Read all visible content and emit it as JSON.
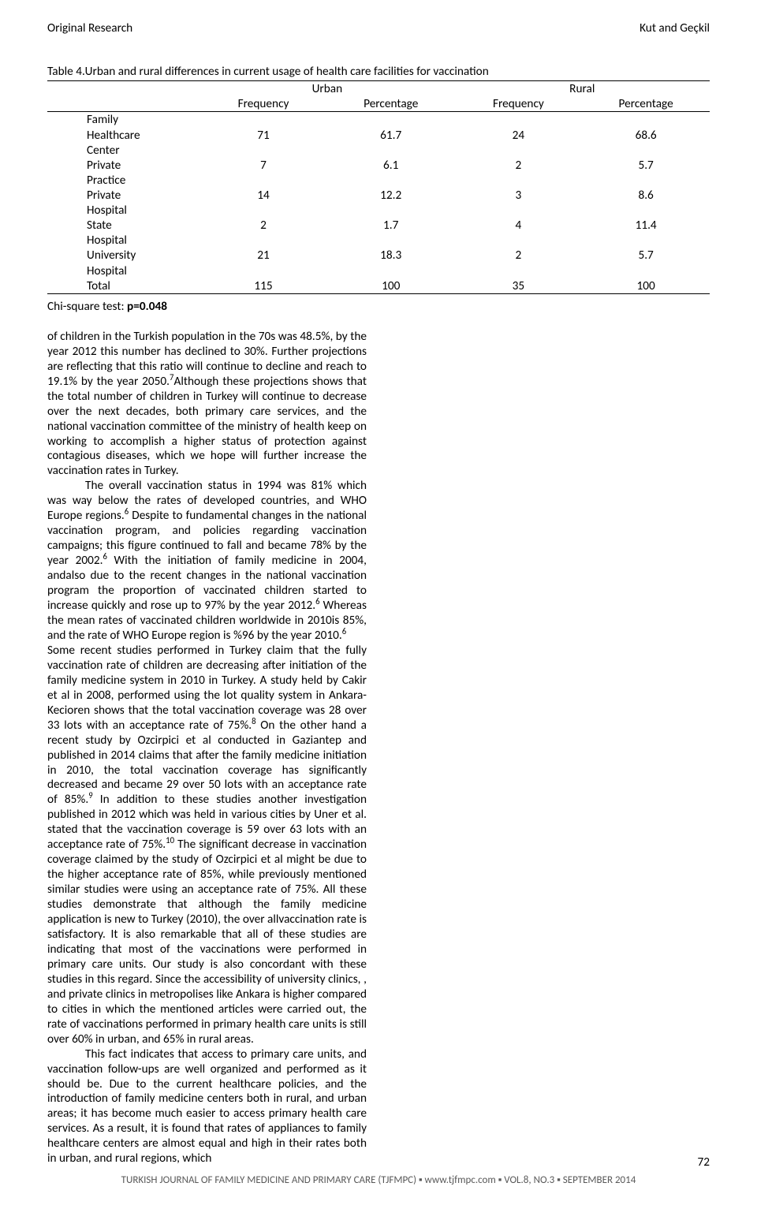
{
  "header": {
    "left": "Original Research",
    "right": "Kut and Geçkil"
  },
  "table": {
    "caption": "Table 4.Urban and rural differences in current usage of health care facilities for vaccination",
    "group_labels": [
      "Urban",
      "Rural"
    ],
    "col_labels": [
      "Frequency",
      "Percentage",
      "Frequency",
      "Percentage"
    ],
    "rows": [
      {
        "label_line1": "Family",
        "label_line2": "Healthcare",
        "label_line3": "Center",
        "vals": [
          "71",
          "61.7",
          "24",
          "68.6"
        ]
      },
      {
        "label_line1": "Private",
        "label_line2": "Practice",
        "vals": [
          "7",
          "6.1",
          "2",
          "5.7"
        ]
      },
      {
        "label_line1": "Private",
        "label_line2": "Hospital",
        "vals": [
          "14",
          "12.2",
          "3",
          "8.6"
        ]
      },
      {
        "label_line1": "State",
        "label_line2": "Hospital",
        "vals": [
          "2",
          "1.7",
          "4",
          "11.4"
        ]
      },
      {
        "label_line1": "University",
        "label_line2": "Hospital",
        "vals": [
          "21",
          "18.3",
          "2",
          "5.7"
        ]
      },
      {
        "label_line1": "Total",
        "vals": [
          "115",
          "100",
          "35",
          "100"
        ],
        "is_total": true
      }
    ],
    "chi_label": "Chi-square test: ",
    "chi_value": "p=0.048"
  },
  "body": {
    "p1": "of children in the Turkish population in the 70s was 48.5%, by the year 2012 this number has declined to 30%. Further projections are reflecting that this ratio will continue to decline and reach to 19.1% by the year 2050.",
    "p1_cont": "Although these projections shows that the total number of children in Turkey will continue to decrease over the next decades, both primary care services, and the national vaccination committee of the ministry of health keep on working to accomplish a higher status of protection against contagious diseases, which we hope will further increase the vaccination rates in Turkey.",
    "p2": "The overall vaccination status in 1994 was 81% which was way below the rates of developed countries, and WHO Europe regions.",
    "p2_cont": " Despite to fundamental changes in the national vaccination program, and policies regarding vaccination campaigns; this figure continued to fall and became 78% by the year 2002.",
    "p2_cont2": " With the initiation of family medicine in 2004, andalso due to the recent changes in the national vaccination program the proportion of vaccinated children started to increase quickly and rose up to 97% by the year 2012.",
    "p2_cont3": " Whereas the mean rates of vaccinated children worldwide in 2010is 85%, and the rate of WHO Europe region is %96 by the year 2010.",
    "p3": "Some recent studies performed in Turkey claim that the fully vaccination rate of children are decreasing after initiation of the family medicine system in 2010 in Turkey. A study held by Cakir et al in 2008, performed using the lot quality system in Ankara-Kecioren shows that the total vaccination coverage was 28 over 33 lots with an acceptance rate of 75%.",
    "p3_cont": " On the other hand a recent study by Ozcirpici et al conducted in Gaziantep and published in 2014 claims that after ",
    "p4a": "the family medicine initiation in 2010, the total vaccination coverage has significantly decreased and became 29 over 50 lots with an acceptance rate of 85%.",
    "p4b": " In addition to these studies another investigation published in 2012 which was held in various cities by Uner et al. stated that the vaccination coverage is 59 over 63 lots with an acceptance rate of 75%.",
    "p4c": " The significant decrease in vaccination coverage claimed by the study of Ozcirpici et al might be due to the higher acceptance rate of 85%, while previously mentioned similar studies were using an acceptance rate of 75%. All these studies demonstrate that although the family medicine application is new to Turkey (2010), the over allvaccination rate is satisfactory. It is also remarkable that all of these studies are indicating that most of the vaccinations were performed in primary care units. Our study is also concordant with these studies in this regard. Since the accessibility of university clinics, , and private clinics in metropolises like Ankara is higher compared to cities in which the mentioned articles were carried out, the rate of vaccinations performed in primary health care units is still over 60% in urban, and 65% in rural areas.",
    "p5": "This fact indicates that access to primary care units, and vaccination follow-ups are well organized and performed as it should be. Due to the current healthcare policies, and the introduction of family medicine centers both in rural, and urban areas; it has become much easier to access primary health care services. As a result, it is found that rates of appliances to family healthcare centers are almost equal and high in their rates both in urban, and rural regions, which "
  },
  "sup": {
    "s6": "6",
    "s7": "7",
    "s8": "8",
    "s9": "9",
    "s10": "10"
  },
  "footer": {
    "part1": "TURKISH JOURNAL OF FAMILY MEDICINE AND PRIMARY CARE (TJFMPC)",
    "part2": "www.tjfmpc.com",
    "part3": "VOL.8, NO.3",
    "part4": "SEPTEMBER 2014",
    "page": "72"
  }
}
